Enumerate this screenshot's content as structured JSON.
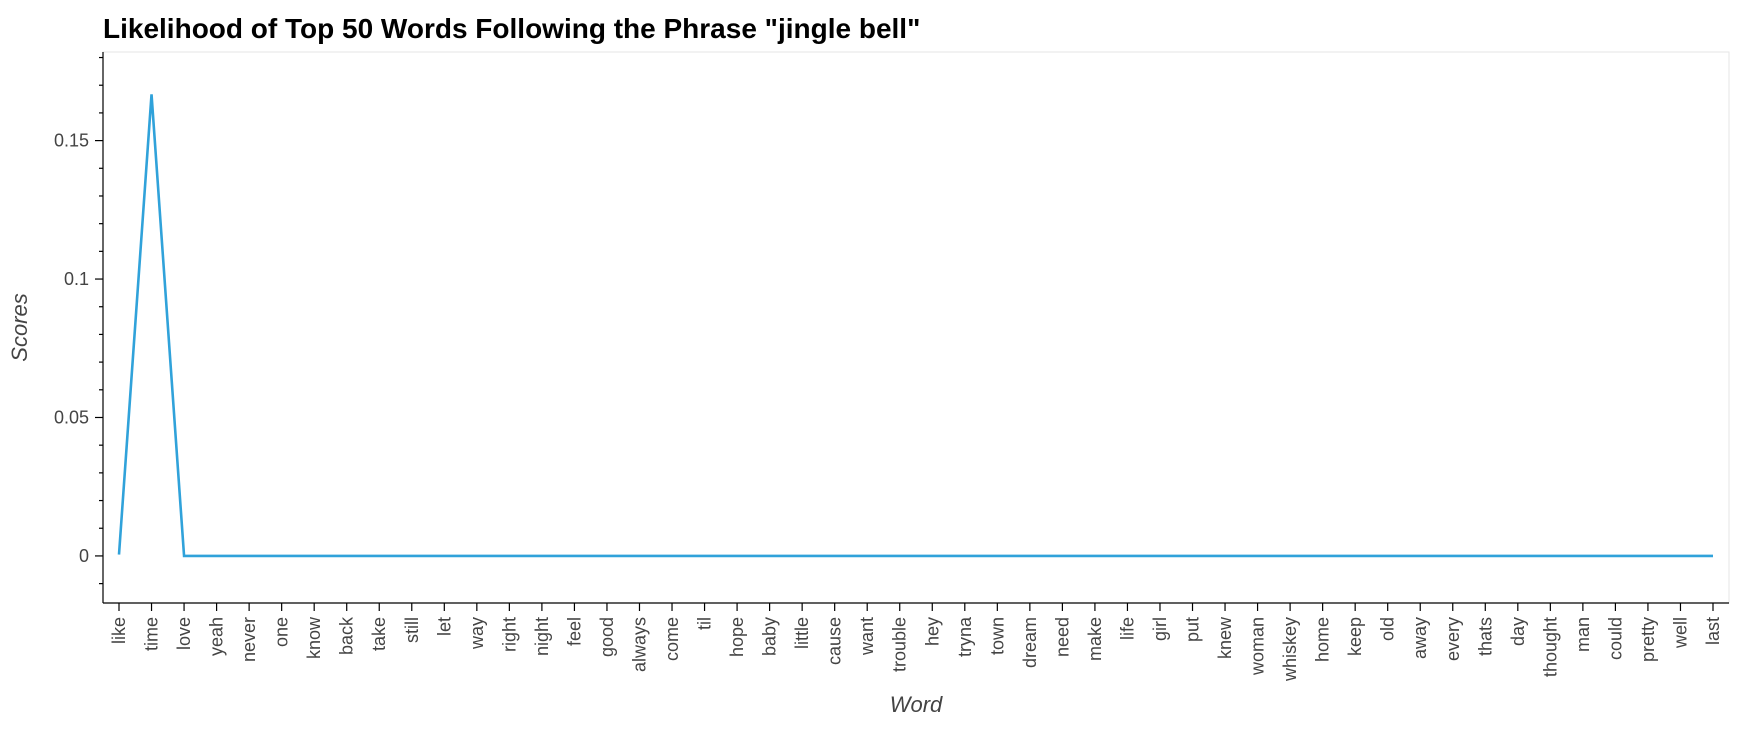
{
  "chart_data": {
    "type": "line",
    "title": "Likelihood of Top 50 Words Following the Phrase \"jingle bell\"",
    "xlabel": "Word",
    "ylabel": "Scores",
    "categories": [
      "like",
      "time",
      "love",
      "yeah",
      "never",
      "one",
      "know",
      "back",
      "take",
      "still",
      "let",
      "way",
      "right",
      "night",
      "feel",
      "good",
      "always",
      "come",
      "til",
      "hope",
      "baby",
      "little",
      "cause",
      "want",
      "trouble",
      "hey",
      "tryna",
      "town",
      "dream",
      "need",
      "make",
      "life",
      "girl",
      "put",
      "knew",
      "woman",
      "whiskey",
      "home",
      "keep",
      "old",
      "away",
      "every",
      "thats",
      "day",
      "thought",
      "man",
      "could",
      "pretty",
      "well",
      "last"
    ],
    "series": [
      {
        "values": [
          0.0005,
          0.1667,
          0,
          0,
          0,
          0,
          0,
          0,
          0,
          0,
          0,
          0,
          0,
          0,
          0,
          0,
          0,
          0,
          0,
          0,
          0,
          0,
          0,
          0,
          0,
          0,
          0,
          0,
          0,
          0,
          0,
          0,
          0,
          0,
          0,
          0,
          0,
          0,
          0,
          0,
          0,
          0,
          0,
          0,
          0,
          0,
          0,
          0,
          0,
          0
        ]
      }
    ],
    "ylim": [
      -0.017,
      0.182
    ],
    "yticks": [
      0,
      0.05,
      0.1,
      0.15
    ],
    "ytick_labels": [
      "0",
      "0.05",
      "0.1",
      "0.15"
    ],
    "yminor_step": 0.01,
    "grid": false,
    "legend": "none",
    "line_color": "#30a2da"
  }
}
